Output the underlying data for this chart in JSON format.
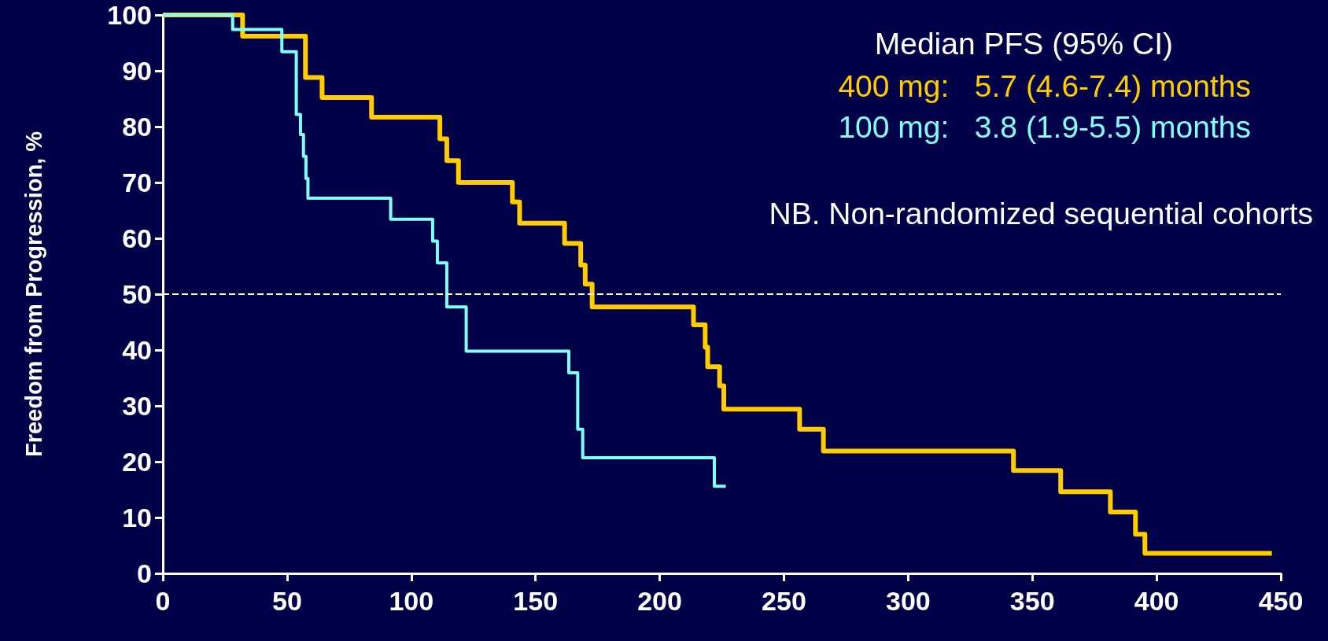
{
  "chart_data": {
    "type": "step",
    "ylabel": "Freedom from Progression, %",
    "xlim": [
      0,
      450
    ],
    "xticks": [
      0,
      50,
      100,
      150,
      200,
      250,
      300,
      350,
      400,
      450
    ],
    "ylim": [
      0,
      100
    ],
    "yticks": [
      0,
      10,
      20,
      30,
      40,
      50,
      60,
      70,
      80,
      90,
      100
    ],
    "grid": false,
    "marker": "none",
    "line_style": "solid",
    "series": [
      {
        "color": "#ffcc00",
        "x": [
          0,
          32.1,
          57.4,
          64.1,
          84.0,
          111.5,
          114.3,
          119.0,
          140.7,
          143.6,
          161.7,
          168.2,
          170.0,
          172.8,
          213.6,
          218.3,
          219.3,
          224.1,
          225.8,
          256.3,
          265.9,
          342.4,
          361.4,
          381.4,
          391.5,
          395.3,
          446.4
        ],
        "values": [
          100,
          96.2,
          88.8,
          85.2,
          81.7,
          77.8,
          73.9,
          70.0,
          66.5,
          62.7,
          59.1,
          55.2,
          51.8,
          47.7,
          44.5,
          40.5,
          37.0,
          33.6,
          29.4,
          25.8,
          21.9,
          18.4,
          14.6,
          11.0,
          7.0,
          3.6,
          3.6
        ]
      },
      {
        "color": "#80ffff",
        "x": [
          0,
          28.1,
          47.9,
          53.7,
          55.4,
          56.6,
          57.6,
          58.4,
          91.7,
          108.6,
          110.5,
          114.3,
          122.1,
          163.4,
          167.0,
          169.0,
          222.0,
          226.6
        ],
        "values": [
          100,
          97.4,
          93.4,
          82.2,
          78.6,
          74.7,
          70.7,
          67.2,
          63.4,
          59.5,
          55.6,
          47.7,
          39.8,
          35.9,
          25.8,
          20.7,
          15.6,
          15.6
        ]
      }
    ],
    "ref_lines": [
      {
        "axis": "y",
        "value": 50,
        "color": "#ffffff",
        "line_style": "dashed"
      }
    ],
    "annotations": [
      "Median PFS (95% CI)",
      "400 mg:   5.7 (4.6-7.4) months",
      "100 mg:   3.8 (1.9-5.5) months",
      "NB. Non-randomized sequential cohorts"
    ]
  }
}
